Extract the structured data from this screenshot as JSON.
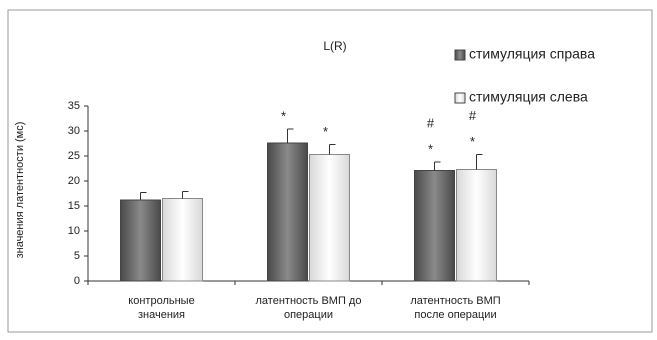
{
  "chart_data": {
    "type": "bar",
    "title": "L(R)",
    "y_label": "значения латентности (мс)",
    "categories": [
      [
        "контрольные",
        "значения"
      ],
      [
        "латентность ВМП до",
        "операции"
      ],
      [
        "латентность ВМП",
        "после операции"
      ]
    ],
    "series": [
      {
        "name": "стимуляция справа",
        "color": "#6e6e6e",
        "values": [
          16.2,
          27.6,
          22.1
        ],
        "errors": [
          1.5,
          2.8,
          1.7
        ],
        "annotations": [
          null,
          [
            "*"
          ],
          [
            "#",
            "*"
          ]
        ]
      },
      {
        "name": "стимуляция слева",
        "color": "#f2f2f2",
        "values": [
          16.5,
          25.3,
          22.3
        ],
        "errors": [
          1.4,
          2.0,
          3.0
        ],
        "annotations": [
          null,
          [
            "*"
          ],
          [
            "#",
            "*"
          ]
        ]
      }
    ],
    "ylim": [
      0,
      35
    ],
    "yticks": [
      0,
      5,
      10,
      15,
      20,
      25,
      30,
      35
    ]
  }
}
